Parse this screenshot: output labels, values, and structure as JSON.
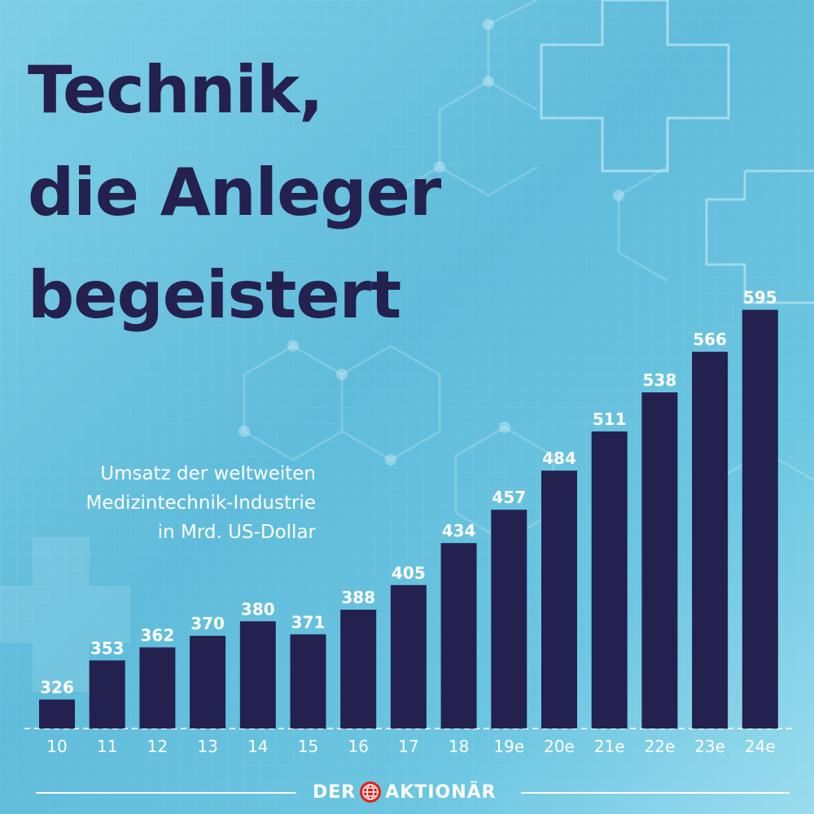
{
  "headline": [
    "Technik,",
    "die Anleger",
    "begeistert"
  ],
  "subtitle": [
    "Umsatz der weltweiten",
    "Medizintechnik-Industrie",
    "in Mrd. US-Dollar"
  ],
  "brand": {
    "left": "DER",
    "right": "AKTIONÄR",
    "icon": "globe-icon"
  },
  "colors": {
    "bar": "#24214f",
    "headline": "#24214f",
    "label": "#ffffff",
    "accent": "#e2231a"
  },
  "chart_data": {
    "type": "bar",
    "categories": [
      "10",
      "11",
      "12",
      "13",
      "14",
      "15",
      "16",
      "17",
      "18",
      "19e",
      "20e",
      "21e",
      "22e",
      "23e",
      "24e"
    ],
    "values": [
      326,
      353,
      362,
      370,
      380,
      371,
      388,
      405,
      434,
      457,
      484,
      511,
      538,
      566,
      595
    ],
    "title": "Technik, die Anleger begeistert",
    "subtitle": "Umsatz der weltweiten Medizintechnik-Industrie in Mrd. US-Dollar",
    "xlabel": "",
    "ylabel": "",
    "grid": false,
    "data_labels": true
  }
}
